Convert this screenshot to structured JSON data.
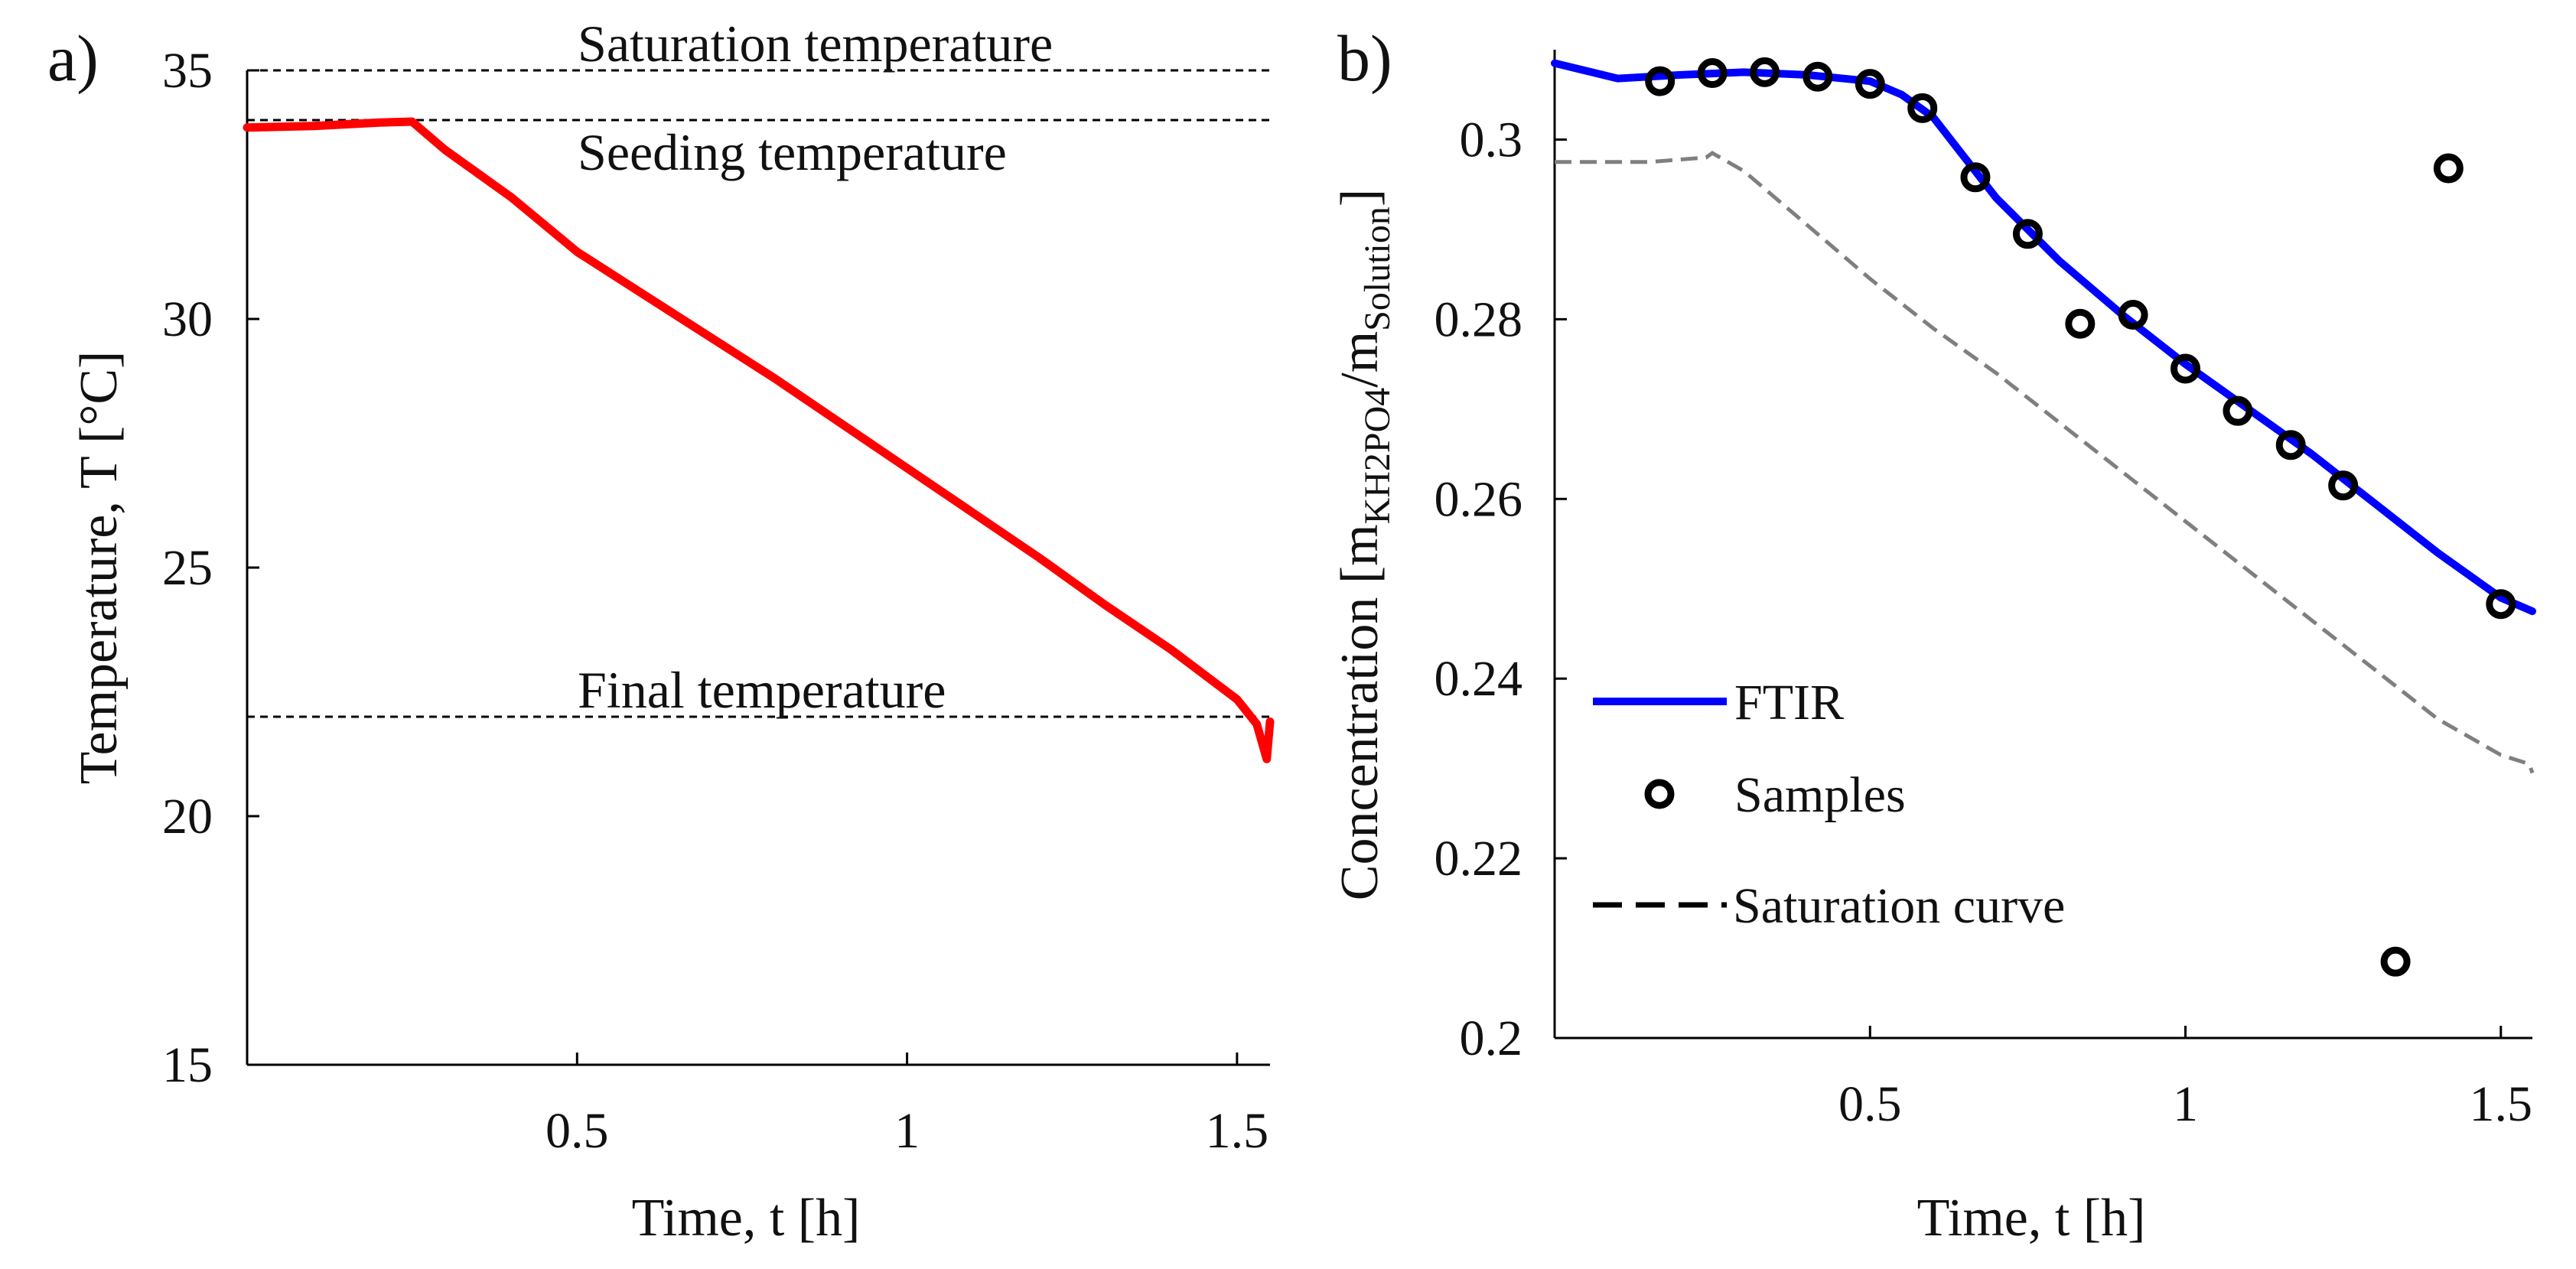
{
  "colors": {
    "temperature": "#ff0000",
    "ftir": "#0000ff",
    "saturation": "#7f7f7f",
    "samples": "#000000",
    "reference_lines": "#000000"
  },
  "chart_data": [
    {
      "panel_label": "a)",
      "type": "line",
      "xlabel": "Time, t [h]",
      "ylabel": "Temperature, T [°C]",
      "xlim": [
        0,
        1.55
      ],
      "ylim": [
        15,
        35
      ],
      "xticks": [
        {
          "value": 0.5,
          "label": "0.5"
        },
        {
          "value": 1,
          "label": "1"
        },
        {
          "value": 1.5,
          "label": "1.5"
        }
      ],
      "yticks": [
        {
          "value": 15,
          "label": "15"
        },
        {
          "value": 20,
          "label": "20"
        },
        {
          "value": 25,
          "label": "25"
        },
        {
          "value": 30,
          "label": "30"
        },
        {
          "value": 35,
          "label": "35"
        }
      ],
      "reference_lines": [
        {
          "name": "saturation",
          "value": 35,
          "label": "Saturation temperature"
        },
        {
          "name": "seeding",
          "value": 34,
          "label": "Seeding temperature"
        },
        {
          "name": "final",
          "value": 22,
          "label": "Final temperature"
        }
      ],
      "series": [
        {
          "name": "Temperature",
          "x": [
            0,
            0.1,
            0.2,
            0.25,
            0.3,
            0.4,
            0.5,
            0.6,
            0.7,
            0.8,
            0.9,
            1.0,
            1.1,
            1.2,
            1.3,
            1.4,
            1.5,
            1.53,
            1.545,
            1.55
          ],
          "y": [
            33.85,
            33.88,
            33.95,
            33.97,
            33.4,
            32.45,
            31.35,
            30.5,
            29.65,
            28.8,
            27.9,
            27.0,
            26.1,
            25.2,
            24.25,
            23.35,
            22.35,
            21.85,
            21.15,
            21.9
          ]
        }
      ]
    },
    {
      "panel_label": "b)",
      "type": "line",
      "xlabel": "Time, t [h]",
      "ylabel_prefix": "Concentration [m",
      "ylabel_sub1": "KH2PO4",
      "ylabel_mid": "/m",
      "ylabel_sub2": "Solution",
      "ylabel_suffix": "]",
      "xlim": [
        0,
        1.55
      ],
      "ylim": [
        0.2,
        0.31
      ],
      "xticks": [
        {
          "value": 0.5,
          "label": "0.5"
        },
        {
          "value": 1,
          "label": "1"
        },
        {
          "value": 1.5,
          "label": "1.5"
        }
      ],
      "yticks": [
        {
          "value": 0.2,
          "label": "0.2"
        },
        {
          "value": 0.22,
          "label": "0.22"
        },
        {
          "value": 0.24,
          "label": "0.24"
        },
        {
          "value": 0.26,
          "label": "0.26"
        },
        {
          "value": 0.28,
          "label": "0.28"
        },
        {
          "value": 0.3,
          "label": "0.3"
        }
      ],
      "series": [
        {
          "name": "FTIR",
          "style": "solid",
          "x": [
            0,
            0.1,
            0.2,
            0.3,
            0.4,
            0.5,
            0.55,
            0.6,
            0.65,
            0.7,
            0.8,
            0.9,
            1.0,
            1.1,
            1.2,
            1.3,
            1.4,
            1.5,
            1.55
          ],
          "y": [
            0.3085,
            0.3068,
            0.3072,
            0.3075,
            0.3072,
            0.3065,
            0.305,
            0.3025,
            0.298,
            0.2935,
            0.2865,
            0.2805,
            0.275,
            0.27,
            0.265,
            0.2595,
            0.254,
            0.249,
            0.2475
          ]
        },
        {
          "name": "Saturation curve",
          "style": "dashed",
          "x": [
            0,
            0.15,
            0.24,
            0.25,
            0.3,
            0.4,
            0.5,
            0.6,
            0.7,
            0.8,
            0.9,
            1.0,
            1.1,
            1.2,
            1.3,
            1.4,
            1.5,
            1.545,
            1.55
          ],
          "y": [
            0.2975,
            0.2975,
            0.298,
            0.2985,
            0.2965,
            0.2905,
            0.2845,
            0.279,
            0.274,
            0.2685,
            0.263,
            0.2575,
            0.252,
            0.2465,
            0.241,
            0.2355,
            0.2315,
            0.2305,
            0.2295
          ]
        },
        {
          "name": "Samples",
          "style": "markers",
          "x": [
            0.167,
            0.25,
            0.333,
            0.417,
            0.5,
            0.583,
            0.667,
            0.75,
            0.833,
            0.917,
            1.0,
            1.083,
            1.167,
            1.25,
            1.333,
            1.417,
            1.5
          ],
          "y": [
            0.3065,
            0.3074,
            0.3075,
            0.307,
            0.3062,
            0.3035,
            0.2958,
            0.2895,
            0.2795,
            0.2805,
            0.2745,
            0.2698,
            0.266,
            0.2615,
            0.2085,
            0.2968,
            0.2483
          ]
        }
      ],
      "legend": {
        "position": "lower-left",
        "entries": [
          {
            "name": "FTIR",
            "label": "FTIR"
          },
          {
            "name": "Samples",
            "label": "Samples"
          },
          {
            "name": "Saturation curve",
            "label": "Saturation curve"
          }
        ]
      }
    }
  ]
}
